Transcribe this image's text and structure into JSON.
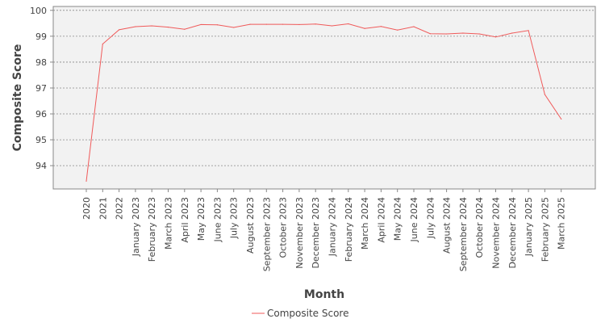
{
  "chart_data": {
    "type": "line",
    "title": "",
    "xlabel": "Month",
    "ylabel": "Composite Score",
    "ylim": [
      93.1,
      100.15
    ],
    "yticks": [
      94,
      95,
      96,
      97,
      98,
      99,
      100
    ],
    "grid": true,
    "legend_position": "bottom-center",
    "categories": [
      "2020",
      "2021",
      "2022",
      "January 2023",
      "February 2023",
      "March 2023",
      "April 2023",
      "May 2023",
      "June 2023",
      "July 2023",
      "August 2023",
      "September 2023",
      "October 2023",
      "November 2023",
      "December 2023",
      "January 2024",
      "February 2024",
      "March 2024",
      "April 2024",
      "May 2024",
      "June 2024",
      "July 2024",
      "August 2024",
      "September 2024",
      "October 2024",
      "November 2024",
      "December 2024",
      "January 2025",
      "February 2025",
      "March 2025"
    ],
    "series": [
      {
        "name": "Composite Score",
        "color": "#f05a5a",
        "values": [
          93.4,
          98.7,
          99.25,
          99.37,
          99.4,
          99.35,
          99.27,
          99.45,
          99.44,
          99.34,
          99.46,
          99.46,
          99.46,
          99.45,
          99.47,
          99.4,
          99.48,
          99.3,
          99.38,
          99.24,
          99.37,
          99.1,
          99.09,
          99.12,
          99.09,
          98.97,
          99.12,
          99.22,
          96.75,
          95.8
        ]
      }
    ],
    "plot_background": "#f2f2f2",
    "gridline_color": "#888888"
  }
}
